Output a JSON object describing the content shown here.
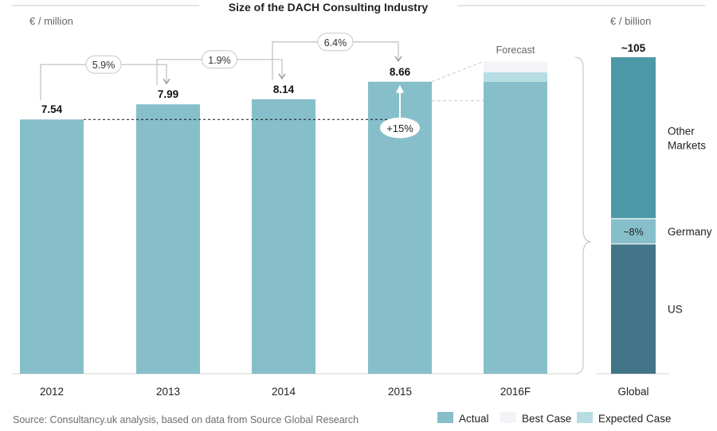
{
  "title": "Size of the DACH Consulting Industry",
  "left_unit": "€ / million",
  "right_unit": "€ / billion",
  "forecast_label": "Forecast",
  "source": "Source: Consultancy.uk analysis, based on data from Source Global Research",
  "colors": {
    "actual": "#86bfca",
    "best_case": "#f3f4f8",
    "expected_case": "#b6dde3",
    "global_other": "#4c98a6",
    "global_germany": "#86bfca",
    "global_us": "#427587"
  },
  "chart_data": [
    {
      "type": "bar",
      "categories": [
        "2012",
        "2013",
        "2014",
        "2015",
        "2016F"
      ],
      "series": [
        {
          "name": "Actual",
          "values": [
            7.54,
            7.99,
            8.14,
            8.66,
            8.66
          ]
        },
        {
          "name": "Expected Case",
          "values": [
            null,
            null,
            null,
            null,
            0.28
          ]
        },
        {
          "name": "Best Case",
          "values": [
            null,
            null,
            null,
            null,
            0.32
          ]
        }
      ],
      "data_labels": [
        "7.54",
        "7.99",
        "8.14",
        "8.66",
        ""
      ],
      "growth_annotations": [
        {
          "from": "2012",
          "to": "2013",
          "label": "5.9%"
        },
        {
          "from": "2013",
          "to": "2014",
          "label": "1.9%"
        },
        {
          "from": "2014",
          "to": "2015",
          "label": "6.4%"
        }
      ],
      "cumulative_annotation": {
        "from": "2012",
        "to": "2015",
        "label": "+15%"
      },
      "ylim": [
        0,
        10.8
      ],
      "unit": "€ / million",
      "legend": [
        "Actual",
        "Best Case",
        "Expected Case"
      ],
      "legend_position": "bottom-right"
    },
    {
      "type": "bar",
      "categories": [
        "Global"
      ],
      "total_label": "~105",
      "segments": [
        {
          "name": "US",
          "share": 0.41,
          "label": ""
        },
        {
          "name": "Germany",
          "share": 0.08,
          "label": "~8%"
        },
        {
          "name": "Other Markets",
          "share": 0.51,
          "label": ""
        }
      ],
      "unit": "€ / billion"
    }
  ]
}
